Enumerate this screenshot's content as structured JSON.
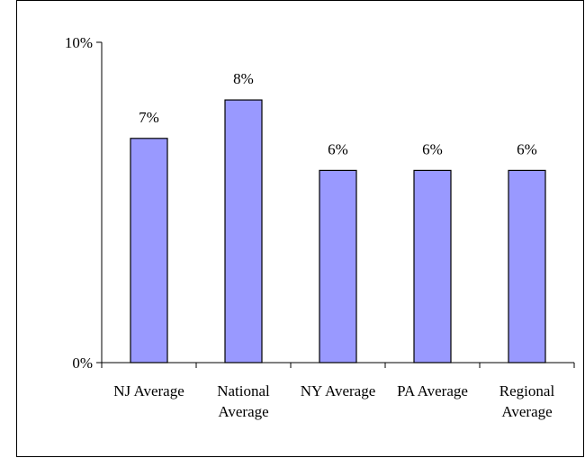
{
  "chart_data": {
    "type": "bar",
    "categories": [
      "NJ Average",
      "National Average",
      "NY Average",
      "PA Average",
      "Regional Average"
    ],
    "values": [
      7,
      8.2,
      6,
      6,
      6
    ],
    "value_labels": [
      "7%",
      "8%",
      "6%",
      "6%",
      "6%"
    ],
    "color": "#9999ff",
    "ylim": [
      0,
      10
    ],
    "yticks": [
      {
        "value": 0,
        "label": "0%"
      },
      {
        "value": 10,
        "label": "10%"
      }
    ],
    "grid": false
  }
}
